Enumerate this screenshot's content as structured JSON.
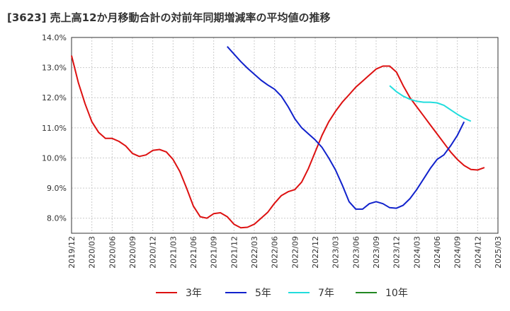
{
  "chart_data": {
    "type": "line",
    "title": "[3623]  売上高12か月移動合計の対前年同期増減率の平均値の推移",
    "xlabel": "",
    "ylabel": "",
    "ylim": [
      7.5,
      14.0
    ],
    "y_ticks": [
      "14.0%",
      "13.0%",
      "12.0%",
      "11.0%",
      "10.0%",
      "9.0%",
      "8.0%"
    ],
    "y_tick_values": [
      14.0,
      13.0,
      12.0,
      11.0,
      10.0,
      9.0,
      8.0
    ],
    "x_ticks": [
      "2019/12",
      "2020/03",
      "2020/06",
      "2020/09",
      "2020/12",
      "2021/03",
      "2021/06",
      "2021/09",
      "2021/12",
      "2022/03",
      "2022/06",
      "2022/09",
      "2022/12",
      "2023/03",
      "2023/06",
      "2023/09",
      "2023/12",
      "2024/03",
      "2024/06",
      "2024/09",
      "2024/12",
      "2025/03"
    ],
    "grid": true,
    "legend_position": "bottom",
    "series": [
      {
        "name": "3年",
        "color": "#dd1111",
        "start": "2019/12",
        "values": [
          13.4,
          12.5,
          11.8,
          11.2,
          10.85,
          10.65,
          10.65,
          10.55,
          10.4,
          10.15,
          10.05,
          10.1,
          10.25,
          10.28,
          10.2,
          9.95,
          9.55,
          9.0,
          8.4,
          8.05,
          8.0,
          8.15,
          8.18,
          8.05,
          7.8,
          7.68,
          7.7,
          7.8,
          8.0,
          8.2,
          8.5,
          8.75,
          8.88,
          8.95,
          9.2,
          9.65,
          10.2,
          10.75,
          11.2,
          11.55,
          11.85,
          12.1,
          12.35,
          12.55,
          12.75,
          12.95,
          13.05,
          13.05,
          12.85,
          12.4,
          12.0,
          11.7,
          11.4,
          11.1,
          10.8,
          10.5,
          10.2,
          9.95,
          9.75,
          9.62,
          9.6,
          9.68
        ]
      },
      {
        "name": "5年",
        "color": "#1122cc",
        "start": "2021/11",
        "values": [
          13.7,
          13.45,
          13.2,
          12.98,
          12.78,
          12.58,
          12.42,
          12.28,
          12.05,
          11.7,
          11.3,
          11.0,
          10.8,
          10.6,
          10.35,
          10.0,
          9.6,
          9.1,
          8.55,
          8.3,
          8.3,
          8.48,
          8.55,
          8.48,
          8.35,
          8.33,
          8.43,
          8.65,
          8.95,
          9.3,
          9.65,
          9.95,
          10.1,
          10.4,
          10.75,
          11.2
        ]
      },
      {
        "name": "7年",
        "color": "#22dddd",
        "start": "2023/11",
        "values": [
          12.4,
          12.2,
          12.05,
          11.95,
          11.88,
          11.85,
          11.85,
          11.83,
          11.75,
          11.6,
          11.45,
          11.32,
          11.22
        ]
      },
      {
        "name": "10年",
        "color": "#228822",
        "start": "2024/12",
        "values": []
      }
    ]
  }
}
